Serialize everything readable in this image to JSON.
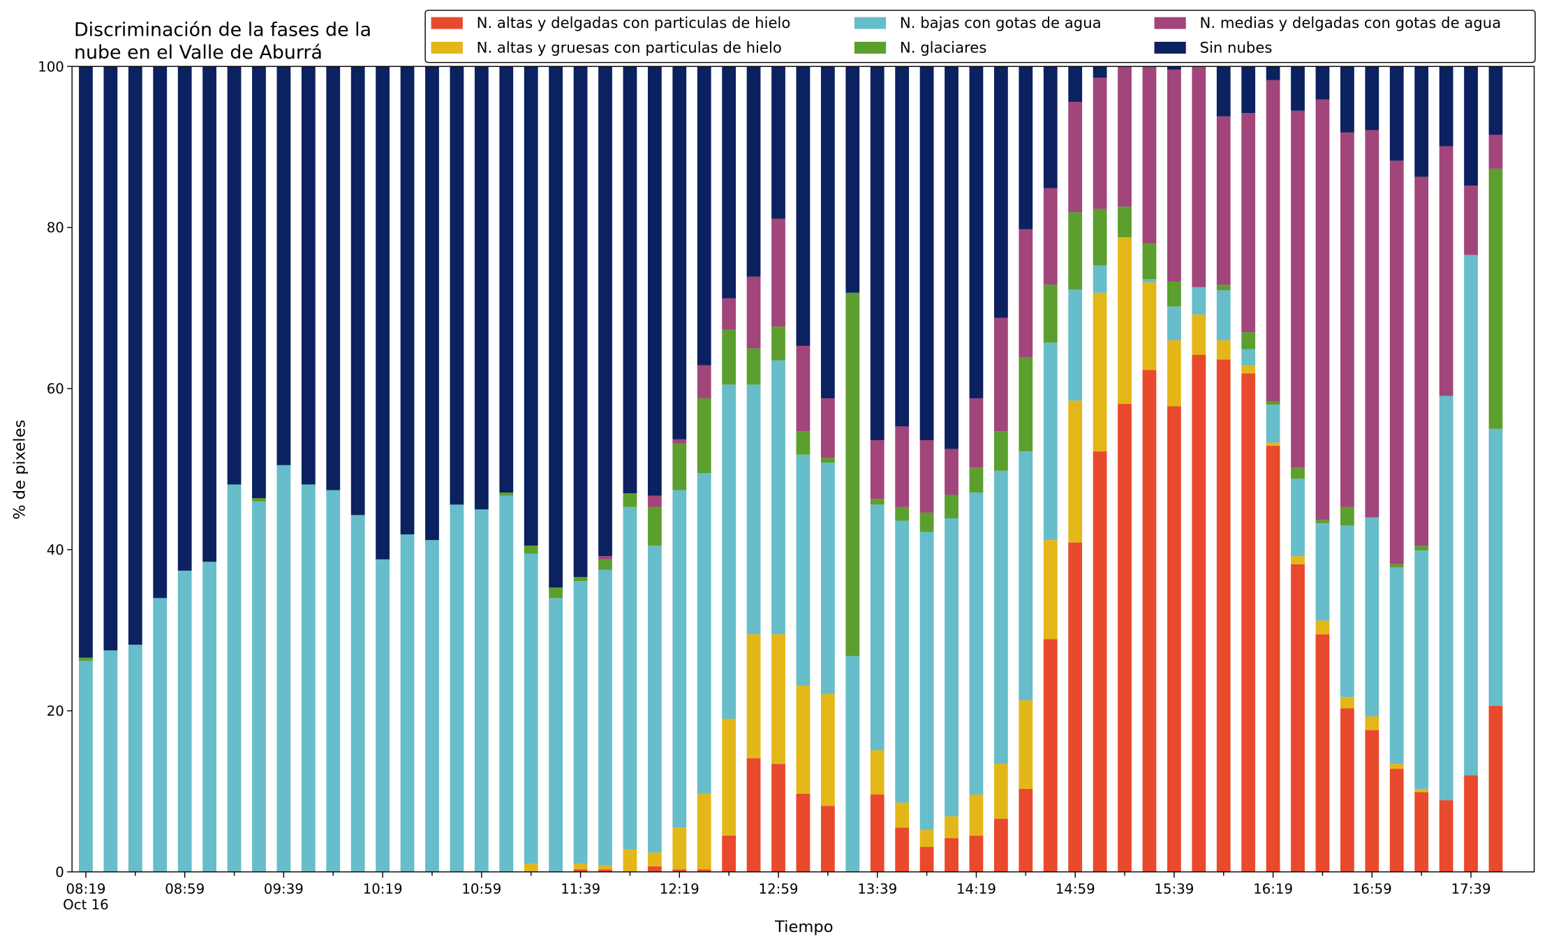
{
  "chart_data": {
    "type": "stacked_bar",
    "title": [
      "Discriminación de la fases de la",
      "nube en el Valle de Aburrá"
    ],
    "xlabel": "Tiempo",
    "ylabel": "% de pixeles",
    "x_sublabel": "Oct 16",
    "categories": [
      "08:19",
      null,
      null,
      null,
      "08:59",
      null,
      null,
      null,
      "09:39",
      null,
      null,
      null,
      "10:19",
      null,
      null,
      null,
      "10:59",
      null,
      null,
      null,
      "11:39",
      null,
      null,
      null,
      "12:19",
      null,
      null,
      null,
      "12:59",
      null,
      null,
      null,
      "13:39",
      null,
      null,
      null,
      "14:19",
      null,
      null,
      null,
      "14:59",
      null,
      null,
      null,
      "15:39",
      null,
      null,
      null,
      "16:19",
      null,
      null,
      null,
      "16:59",
      null,
      null,
      null,
      "17:39",
      null
    ],
    "ylim": [
      0,
      100
    ],
    "yticks": [
      0,
      20,
      40,
      60,
      80,
      100
    ],
    "legend": "top-right",
    "series": [
      {
        "name": "N. altas y delgadas con particulas de hielo",
        "color": "#e9492c",
        "values": [
          0,
          0,
          0,
          0,
          0,
          0,
          0,
          0,
          0,
          0,
          0,
          0,
          0,
          0,
          0,
          0,
          0,
          0,
          0,
          0,
          0.3,
          0.3,
          0,
          0.7,
          0.3,
          0.3,
          4.5,
          14.1,
          13.4,
          9.7,
          8.2,
          0,
          9.6,
          5.5,
          3.1,
          4.2,
          4.5,
          6.6,
          10.3,
          28.9,
          40.9,
          52.2,
          58.1,
          62.3,
          57.8,
          64.2,
          63.6,
          61.9,
          52.9,
          38.2,
          29.5,
          20.3,
          17.6,
          12.8,
          9.9,
          8.9,
          12,
          20.6
        ]
      },
      {
        "name": "N. altas y gruesas con particulas de hielo",
        "color": "#e4b719",
        "values": [
          0,
          0,
          0,
          0,
          0,
          0,
          0,
          0,
          0,
          0,
          0,
          0,
          0,
          0,
          0,
          0,
          0,
          0,
          1,
          0,
          0.7,
          0.5,
          2.8,
          1.7,
          5.2,
          9.4,
          14.5,
          15.4,
          16.1,
          13.4,
          13.9,
          0,
          5.5,
          3.1,
          2.1,
          2.7,
          5.1,
          6.8,
          11,
          12.3,
          17.6,
          19.7,
          20.7,
          10.9,
          8.2,
          5,
          2.4,
          1,
          0.4,
          1,
          1.7,
          1.4,
          1.7,
          0.6,
          0.4,
          0,
          0,
          0
        ]
      },
      {
        "name": "N. bajas con gotas de agua",
        "color": "#67bdc9",
        "values": [
          26.2,
          27.5,
          28.2,
          34,
          37.4,
          38.5,
          48.1,
          46,
          50.5,
          48.1,
          47.4,
          44.3,
          38.8,
          41.9,
          41.2,
          45.6,
          45,
          46.7,
          38.5,
          34,
          35.1,
          36.7,
          42.5,
          38.1,
          41.9,
          39.8,
          41.5,
          31,
          34,
          28.7,
          28.7,
          26.8,
          30.5,
          35,
          37,
          37,
          37.5,
          36.4,
          30.9,
          24.5,
          13.8,
          3.4,
          0,
          0.4,
          4.2,
          3.4,
          6.2,
          2,
          4.7,
          9.6,
          12.1,
          21.3,
          24.7,
          24.4,
          29.6,
          50.2,
          64.6,
          34.4
        ]
      },
      {
        "name": "N. glaciares",
        "color": "#5b9f2e",
        "values": [
          0.4,
          0,
          0,
          0,
          0,
          0,
          0,
          0.4,
          0,
          0,
          0,
          0,
          0,
          0,
          0,
          0,
          0,
          0.4,
          1,
          1.3,
          0.5,
          1.3,
          1.7,
          4.8,
          5.8,
          9.3,
          6.8,
          4.5,
          4.2,
          2.9,
          0.6,
          45.1,
          0.7,
          1.7,
          2.4,
          2.9,
          3.1,
          4.9,
          11.7,
          7.2,
          9.6,
          7,
          3.8,
          4.4,
          3.1,
          0,
          0.7,
          2.1,
          0.4,
          1.4,
          0.4,
          2.3,
          0,
          0.4,
          0.6,
          0,
          0,
          32.3
        ]
      },
      {
        "name": "N. medias y delgadas con gotas de agua",
        "color": "#a2457b",
        "values": [
          0,
          0,
          0,
          0,
          0,
          0,
          0,
          0,
          0,
          0,
          0,
          0,
          0,
          0,
          0,
          0,
          0,
          0,
          0,
          0,
          0,
          0.4,
          0,
          1.4,
          0.5,
          4.1,
          3.9,
          8.9,
          13.4,
          10.6,
          7.4,
          0,
          7.3,
          10,
          9,
          5.7,
          8.6,
          14.1,
          15.9,
          12,
          13.7,
          16.3,
          17.4,
          22,
          26.3,
          27.4,
          20.9,
          27.2,
          39.9,
          44.3,
          52.2,
          46.5,
          48.1,
          50.1,
          45.8,
          31,
          8.6,
          4.2
        ]
      },
      {
        "name": "Sin nubes",
        "color": "#0b2160",
        "values": [
          73.4,
          72.5,
          71.8,
          66,
          62.6,
          61.5,
          51.9,
          53.6,
          49.5,
          51.9,
          52.6,
          55.7,
          61.2,
          58.1,
          58.8,
          54.4,
          55,
          52.9,
          59.5,
          64.7,
          63.4,
          60.8,
          53,
          53.3,
          46.3,
          37.1,
          28.8,
          26.1,
          18.9,
          34.7,
          41.2,
          28.1,
          46.4,
          44.7,
          46.4,
          47.5,
          41.2,
          31.2,
          20.2,
          15.1,
          4.4,
          1.4,
          0,
          0,
          0.4,
          0,
          6.2,
          5.8,
          1.7,
          5.5,
          4.1,
          8.2,
          7.9,
          11.7,
          13.7,
          9.9,
          14.8,
          8.5
        ]
      }
    ]
  }
}
